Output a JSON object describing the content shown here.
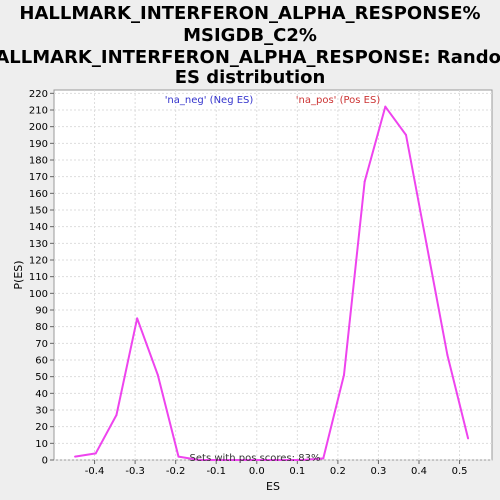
{
  "chart_data": {
    "type": "line",
    "title": [
      "HALLMARK_INTERFERON_ALPHA_RESPONSE%",
      "MSIGDB_C2%",
      "HALLMARK_INTERFERON_ALPHA_RESPONSE: Random",
      "ES distribution"
    ],
    "xlabel": "ES",
    "ylabel": "P(ES)",
    "xlim": [
      -0.5,
      0.58
    ],
    "ylim": [
      0,
      222
    ],
    "x_ticks": [
      "-0.4",
      "-0.3",
      "-0.2",
      "-0.1",
      "0.0",
      "0.1",
      "0.2",
      "0.3",
      "0.4",
      "0.5"
    ],
    "y_ticks": [
      "0",
      "10",
      "20",
      "30",
      "40",
      "50",
      "60",
      "70",
      "80",
      "90",
      "100",
      "110",
      "120",
      "130",
      "140",
      "150",
      "160",
      "170",
      "180",
      "190",
      "200",
      "210",
      "220"
    ],
    "grid": true,
    "legend": [
      {
        "label": "'na_neg' (Neg ES)",
        "color": "#3333cc"
      },
      {
        "label": "'na_pos' (Pos ES)",
        "color": "#cc3333"
      }
    ],
    "annotation": "Sets with pos scores: 83%",
    "series": [
      {
        "color": "#ee44ee",
        "x": [
          -0.448,
          -0.397,
          -0.346,
          -0.295,
          -0.244,
          -0.193,
          -0.142,
          -0.091,
          -0.04,
          0.011,
          0.062,
          0.113,
          0.164,
          0.215,
          0.266,
          0.317,
          0.368,
          0.419,
          0.47,
          0.521
        ],
        "y": [
          2,
          4,
          27,
          85,
          51,
          2,
          0,
          0,
          0,
          0,
          0,
          0,
          1,
          51,
          167,
          212,
          195,
          129,
          63,
          13
        ]
      }
    ]
  }
}
